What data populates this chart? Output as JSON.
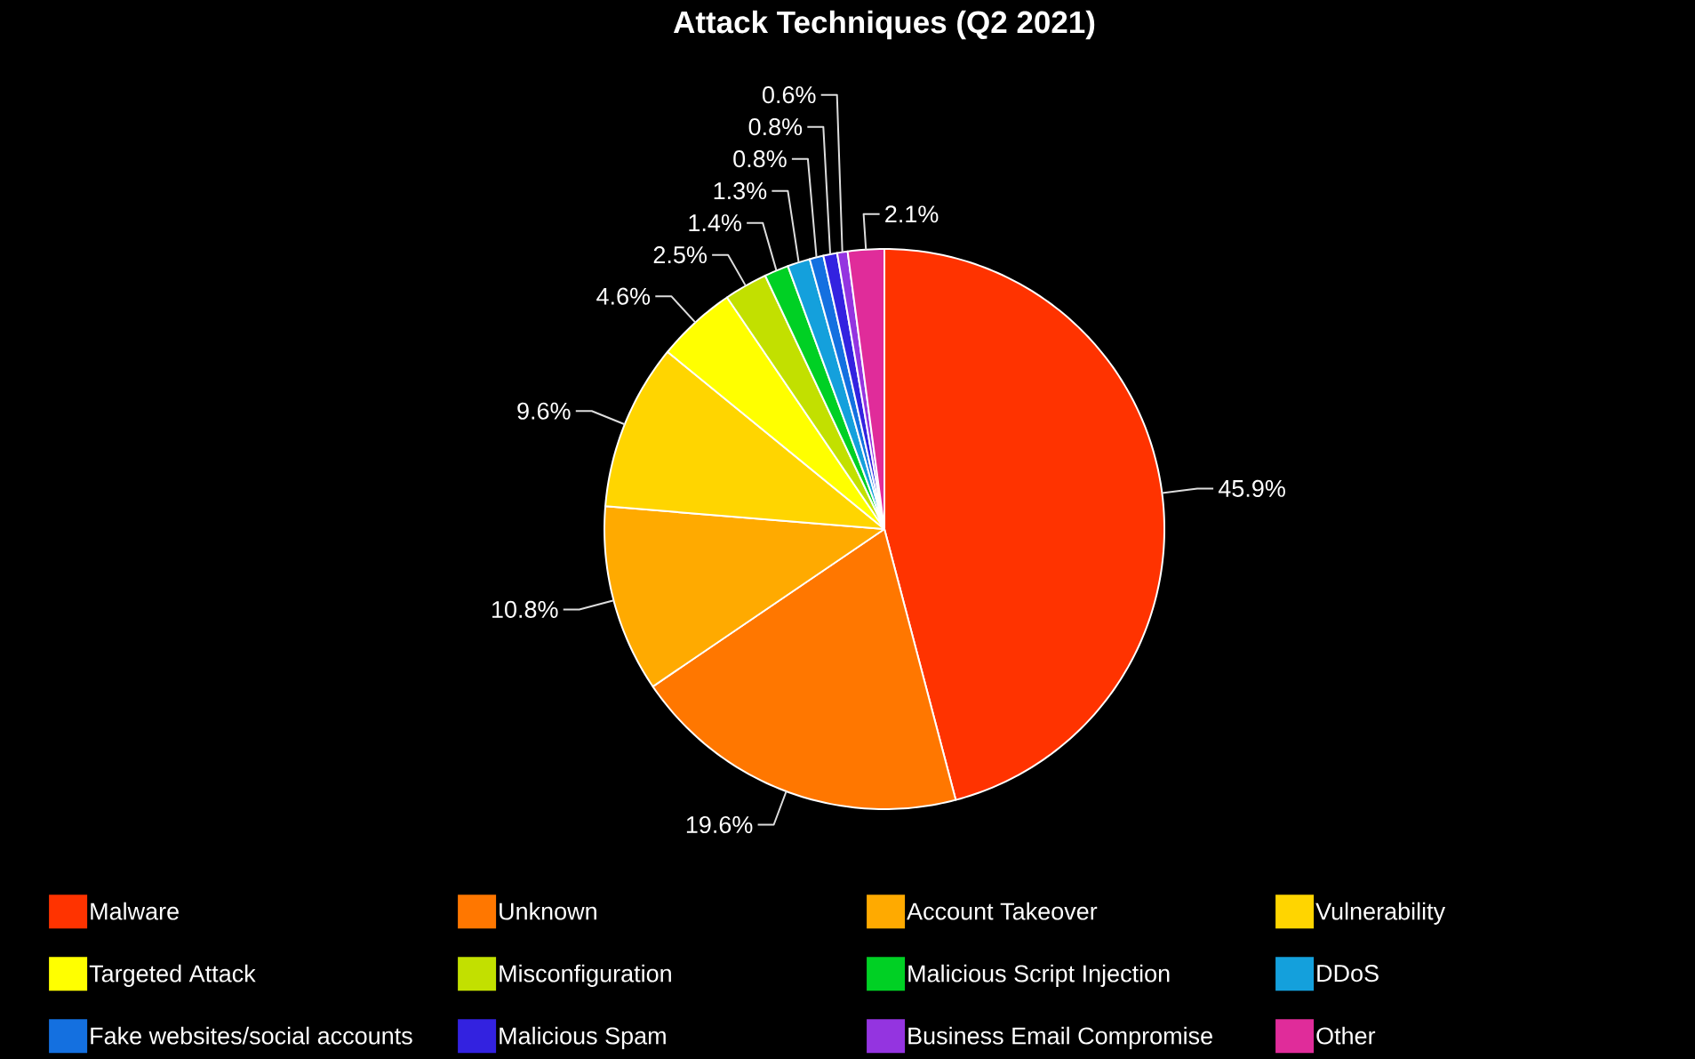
{
  "chart_data": {
    "type": "pie",
    "title": "Attack Techniques (Q2 2021)",
    "categories": [
      "Malware",
      "Unknown",
      "Account Takeover",
      "Vulnerability",
      "Targeted Attack",
      "Misconfiguration",
      "Malicious Script Injection",
      "DDoS",
      "Fake websites/social accounts",
      "Malicious Spam",
      "Business Email Compromise",
      "Other"
    ],
    "values": [
      45.9,
      19.6,
      10.8,
      9.6,
      4.6,
      2.5,
      1.4,
      1.3,
      0.8,
      0.8,
      0.6,
      2.1
    ],
    "value_labels": [
      "45.9%",
      "19.6%",
      "10.8%",
      "9.6%",
      "4.6%",
      "2.5%",
      "1.4%",
      "1.3%",
      "0.8%",
      "0.8%",
      "0.6%",
      "2.1%"
    ],
    "colors": [
      "#ff3300",
      "#ff7700",
      "#ffaa00",
      "#ffd500",
      "#ffff00",
      "#c2e000",
      "#00d024",
      "#14a0dc",
      "#1470e0",
      "#3322e0",
      "#9434e0",
      "#e02c9a"
    ],
    "legend": "bottom"
  }
}
